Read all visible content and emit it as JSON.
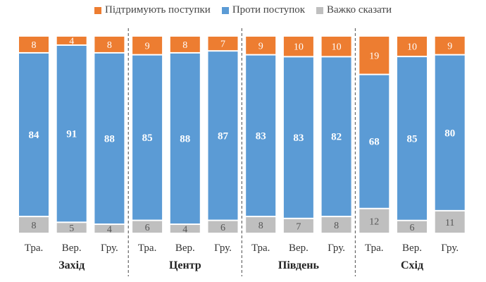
{
  "chart_data": {
    "type": "bar",
    "stacked": true,
    "normalized": true,
    "legend_position": "top",
    "series": [
      {
        "name": "Підтримують поступки",
        "color": "#ED7D31",
        "values": [
          8,
          4,
          8,
          9,
          8,
          7,
          9,
          10,
          10,
          19,
          10,
          9
        ]
      },
      {
        "name": "Проти поступок",
        "color": "#5B9BD5",
        "values": [
          84,
          91,
          88,
          85,
          88,
          87,
          83,
          83,
          82,
          68,
          85,
          80
        ]
      },
      {
        "name": "Важко сказати",
        "color": "#BFBFBF",
        "values": [
          8,
          5,
          4,
          6,
          4,
          6,
          8,
          7,
          8,
          12,
          6,
          11
        ]
      }
    ],
    "categories": [
      "Тра.",
      "Вер.",
      "Гру.",
      "Тра.",
      "Вер.",
      "Гру.",
      "Тра.",
      "Вер.",
      "Гру.",
      "Тра.",
      "Вер.",
      "Гру."
    ],
    "groups": [
      {
        "name": "Захід",
        "start": 0,
        "end": 2
      },
      {
        "name": "Центр",
        "start": 3,
        "end": 5
      },
      {
        "name": "Південь",
        "start": 6,
        "end": 8
      },
      {
        "name": "Схід",
        "start": 9,
        "end": 11
      }
    ]
  }
}
